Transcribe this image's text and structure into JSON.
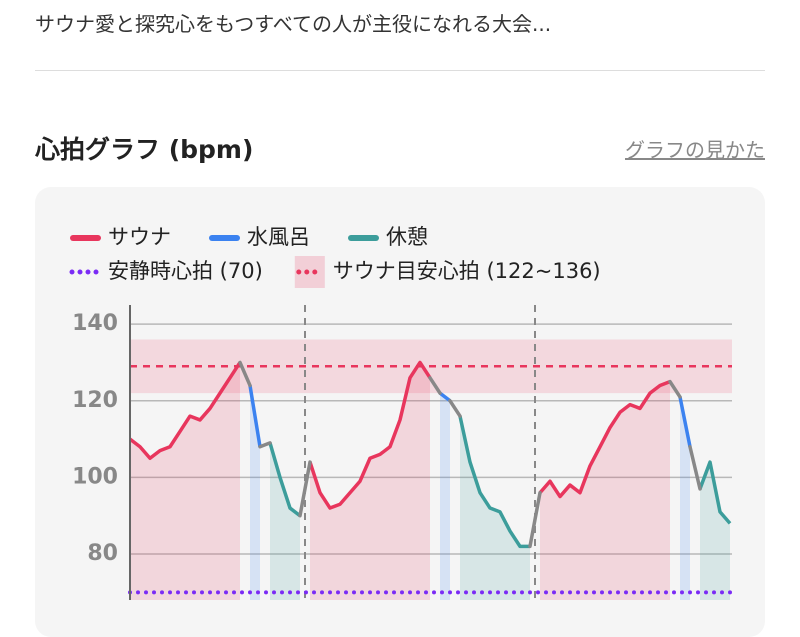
{
  "intro": "サウナ愛と探究心をもつすべての人が主役になれる大会...",
  "section_title": "心拍グラフ (bpm)",
  "help_link": "グラフの見かた",
  "chart_data": {
    "type": "line",
    "x": [
      0,
      1,
      2,
      3,
      4,
      5,
      6,
      7,
      8,
      9,
      10,
      11,
      12,
      13,
      14,
      15,
      16,
      17,
      18,
      19,
      20,
      21,
      22,
      23,
      24,
      25,
      26,
      27,
      28,
      29,
      30,
      31,
      32,
      33,
      34,
      35,
      36,
      37,
      38,
      39,
      40,
      41,
      42,
      43,
      44,
      45,
      46,
      47,
      48,
      49,
      50,
      51,
      52,
      53,
      54,
      55,
      56,
      57,
      58,
      59,
      60
    ],
    "xlim": [
      0,
      60
    ],
    "ylim": [
      68,
      145
    ],
    "yticks": [
      80,
      100,
      120,
      140
    ],
    "grid": true,
    "series": [
      {
        "name": "サウナ",
        "color": "#e8365d",
        "values": [
          110,
          108,
          105,
          107,
          108,
          112,
          116,
          115,
          118,
          122,
          126,
          130,
          null,
          null,
          null,
          null,
          null,
          null,
          104,
          96,
          92,
          93,
          96,
          99,
          105,
          106,
          108,
          115,
          126,
          130,
          126,
          null,
          null,
          null,
          null,
          null,
          null,
          null,
          null,
          null,
          null,
          96,
          99,
          95,
          98,
          96,
          103,
          108,
          113,
          117,
          119,
          118,
          122,
          124,
          125,
          null,
          null,
          null,
          null,
          null,
          null
        ]
      },
      {
        "name": "水風呂",
        "color": "#3b82f0",
        "values": [
          null,
          null,
          null,
          null,
          null,
          null,
          null,
          null,
          null,
          null,
          null,
          null,
          124,
          108,
          null,
          null,
          null,
          null,
          null,
          null,
          null,
          null,
          null,
          null,
          null,
          null,
          null,
          null,
          null,
          null,
          null,
          122,
          120,
          null,
          null,
          null,
          null,
          null,
          null,
          null,
          null,
          null,
          null,
          null,
          null,
          null,
          null,
          null,
          null,
          null,
          null,
          null,
          null,
          null,
          null,
          121,
          108,
          null,
          null,
          null,
          null
        ]
      },
      {
        "name": "休憩",
        "color": "#3c9d9b",
        "values": [
          null,
          null,
          null,
          null,
          null,
          null,
          null,
          null,
          null,
          null,
          null,
          null,
          null,
          null,
          109,
          100,
          92,
          90,
          null,
          null,
          null,
          null,
          null,
          null,
          null,
          null,
          null,
          null,
          null,
          null,
          null,
          null,
          null,
          116,
          104,
          96,
          92,
          91,
          86,
          82,
          82,
          null,
          null,
          null,
          null,
          null,
          null,
          null,
          null,
          null,
          null,
          null,
          null,
          null,
          null,
          null,
          null,
          97,
          104,
          91,
          88
        ]
      }
    ],
    "resting": {
      "label": "安静時心拍 (70)",
      "value": 70,
      "color": "#7b2cf5"
    },
    "target_band": {
      "label": "サウナ目安心拍 (122~136)",
      "range": [
        122,
        136
      ],
      "color": "#e8365d"
    }
  }
}
